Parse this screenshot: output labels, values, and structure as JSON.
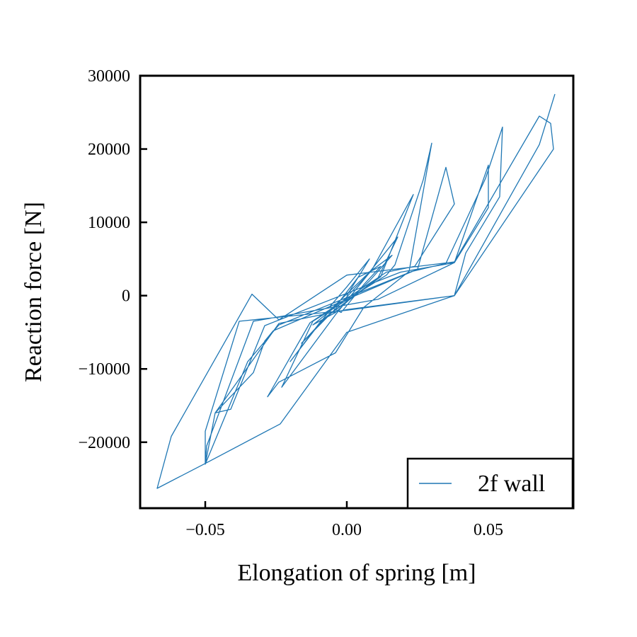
{
  "chart_data": {
    "type": "line",
    "xlabel": "Elongation of spring [m]",
    "ylabel": "Reaction force [N]",
    "xlim": [
      -0.073,
      0.08
    ],
    "ylim": [
      -29000,
      30000
    ],
    "xticks": [
      -0.05,
      0.0,
      0.05
    ],
    "xtick_labels": [
      "−0.05",
      "0.00",
      "0.05"
    ],
    "yticks": [
      -20000,
      -10000,
      0,
      10000,
      20000,
      30000
    ],
    "ytick_labels": [
      "−20000",
      "−10000",
      "0",
      "10000",
      "20000",
      "30000"
    ],
    "grid": false,
    "legend_position": "lower-right",
    "series": [
      {
        "name": "2f wall",
        "color": "#1f77b4",
        "x": [
          0.0,
          0.004,
          0.008,
          0.0,
          -0.006,
          -0.002,
          0.006,
          0.012,
          0.004,
          -0.004,
          -0.012,
          -0.004,
          0.008,
          0.016,
          0.009,
          -0.004,
          -0.016,
          -0.007,
          0.011,
          0.018,
          0.008,
          -0.006,
          -0.02,
          -0.009,
          0.012,
          0.0235,
          0.009,
          -0.004,
          -0.023,
          -0.012,
          0.014,
          0.017,
          0.027,
          0.03,
          0.022,
          0.006,
          -0.004,
          -0.024,
          -0.028,
          -0.013,
          0.014,
          0.024,
          0.038,
          0.035,
          0.025,
          0.0,
          -0.026,
          -0.029,
          -0.033,
          -0.0465,
          -0.041,
          -0.029,
          0.019,
          0.038,
          0.05,
          0.05,
          0.038,
          0.011,
          -0.033,
          -0.0495,
          -0.05,
          -0.035,
          -0.024,
          0.023,
          0.035,
          0.049,
          0.055,
          0.054,
          0.042,
          0.038,
          0.0,
          -0.038,
          -0.05,
          -0.05,
          -0.0465,
          -0.024,
          0.0,
          0.038,
          0.073,
          0.072,
          0.068,
          0.038,
          0.0,
          -0.024,
          -0.0335,
          -0.062,
          -0.067,
          -0.05,
          -0.0235,
          0.0,
          0.038,
          0.068,
          0.0735,
          0.0735
        ],
        "y": [
          0,
          2500,
          5000,
          1200,
          -1500,
          -2300,
          1500,
          4000,
          2500,
          -1500,
          -4000,
          -2300,
          2000,
          5500,
          3500,
          -1800,
          -6500,
          -2800,
          2400,
          8000,
          3200,
          -2000,
          -9000,
          -3400,
          2600,
          13800,
          3600,
          -2600,
          -12500,
          -3500,
          2800,
          4200,
          15800,
          20800,
          3300,
          -1600,
          -7800,
          -11800,
          -13800,
          -3700,
          3200,
          4000,
          12500,
          17500,
          3600,
          -500,
          -4800,
          -6200,
          -10500,
          -16000,
          -15500,
          -4100,
          3200,
          4500,
          12000,
          17800,
          4500,
          -500,
          -3500,
          -20500,
          -23000,
          -9000,
          -4000,
          3300,
          4400,
          16000,
          23000,
          13500,
          5800,
          0,
          -2000,
          -3500,
          -18500,
          -23000,
          -16000,
          -3800,
          -1900,
          0,
          20000,
          23500,
          24500,
          4600,
          2800,
          -3300,
          200,
          -19200,
          -26300,
          -22900,
          -17500,
          -5000,
          0,
          20600,
          27500,
          27500
        ]
      }
    ]
  }
}
